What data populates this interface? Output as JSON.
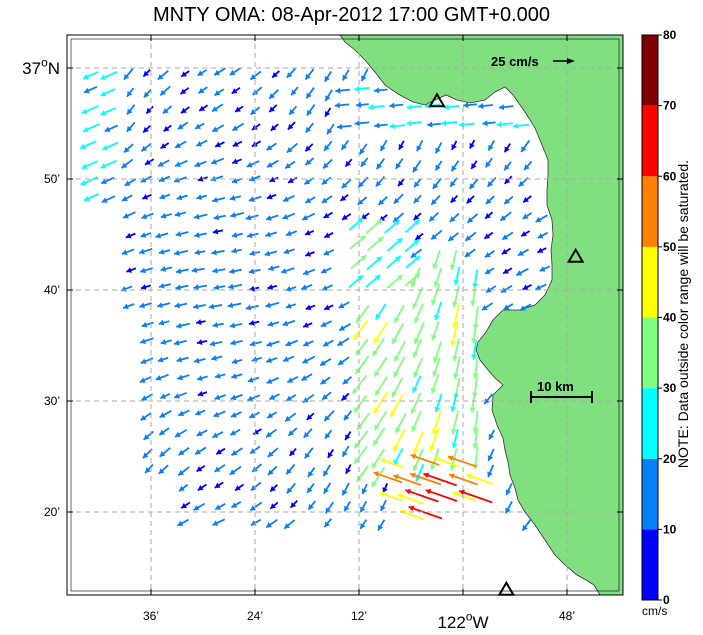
{
  "title": "MNTY OMA: 08-Apr-2012 17:00 GMT+0.000",
  "axes": {
    "y_ticks": [
      {
        "label": "37",
        "sup": "o",
        "suffix": "N",
        "big": true,
        "lat_min": 0
      },
      {
        "label": "50’",
        "lat_min": 10
      },
      {
        "label": "40’",
        "lat_min": 20
      },
      {
        "label": "30’",
        "lat_min": 30
      },
      {
        "label": "20’",
        "lat_min": 40
      }
    ],
    "x_ticks": [
      {
        "label": "36’",
        "lon_min": -36
      },
      {
        "label": "24’",
        "lon_min": -24
      },
      {
        "label": "12’",
        "lon_min": -12
      },
      {
        "label": "122",
        "sup": "o",
        "suffix": "W",
        "big": true,
        "lon_min": 0
      },
      {
        "label": "48’",
        "lon_min": 12
      }
    ]
  },
  "scale_arrow": {
    "label": "25 cm/s",
    "value_cm_s": 25
  },
  "scale_bar": {
    "label": "10 km",
    "length_km": 10
  },
  "stations": [
    {
      "name": "station-1",
      "lon_min": -3,
      "lat_min": 3
    },
    {
      "name": "station-2",
      "lon_min": 13,
      "lat_min": 17
    },
    {
      "name": "station-3",
      "lon_min": 5,
      "lat_min": 47
    }
  ],
  "colorbar": {
    "ticks": [
      "0",
      "10",
      "20",
      "30",
      "40",
      "50",
      "60",
      "70",
      "80"
    ],
    "colors": [
      "#0000ff",
      "#0a7ff5",
      "#00ffff",
      "#80ff80",
      "#ffff00",
      "#ff8000",
      "#ff0000",
      "#800000"
    ],
    "units": "cm/s",
    "range": [
      0,
      80
    ],
    "note": "NOTE: Data outside color range will be saturated."
  },
  "map_colors": {
    "land": "#80e080",
    "grid": "#aaaaaa"
  }
}
